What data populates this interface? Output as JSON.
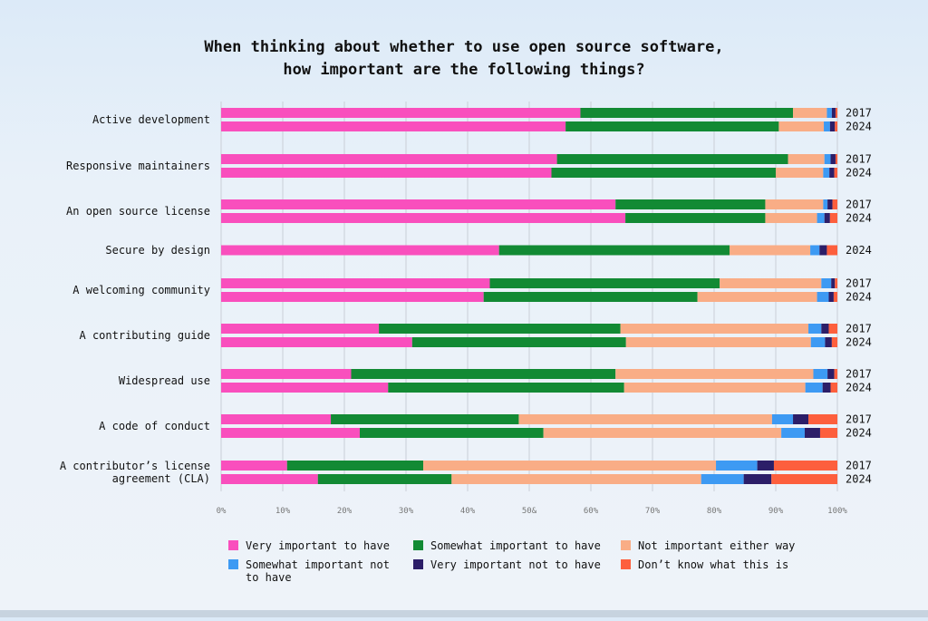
{
  "colors": {
    "very_important": "#f94fbd",
    "somewhat_important": "#128a34",
    "not_important": "#f9ad86",
    "somewhat_not": "#3d9af3",
    "very_not": "#2c1e68",
    "dont_know": "#fd5f3d"
  },
  "chart_data": {
    "type": "bar",
    "orientation": "horizontal",
    "stacked": true,
    "title": "When thinking about whether to use open source software,\nhow important are the following things?",
    "xlim": [
      0,
      100
    ],
    "x_ticks": [
      "0%",
      "10%",
      "20%",
      "30%",
      "40%",
      "50&",
      "60%",
      "70%",
      "80%",
      "90%",
      "100%"
    ],
    "grid": true,
    "legend_position": "bottom",
    "series": [
      {
        "name": "Very important to have",
        "color_key": "very_important"
      },
      {
        "name": "Somewhat important to have",
        "color_key": "somewhat_important"
      },
      {
        "name": "Not important either way",
        "color_key": "not_important"
      },
      {
        "name": "Somewhat important not to have",
        "color_key": "somewhat_not"
      },
      {
        "name": "Very important not to have",
        "color_key": "very_not"
      },
      {
        "name": "Don’t know what this is",
        "color_key": "dont_know"
      }
    ],
    "categories": [
      {
        "label": "Active development",
        "rows": [
          {
            "year": "2017",
            "values": [
              58.3,
              34.5,
              5.5,
              0.8,
              0.6,
              0.3
            ]
          },
          {
            "year": "2024",
            "values": [
              55.9,
              34.6,
              7.3,
              1.0,
              0.8,
              0.4
            ]
          }
        ]
      },
      {
        "label": "Responsive maintainers",
        "rows": [
          {
            "year": "2017",
            "values": [
              54.5,
              37.5,
              5.9,
              1.0,
              0.8,
              0.3
            ]
          },
          {
            "year": "2024",
            "values": [
              53.6,
              36.4,
              7.7,
              1.0,
              0.8,
              0.5
            ]
          }
        ]
      },
      {
        "label": "An open source license",
        "rows": [
          {
            "year": "2017",
            "values": [
              64.0,
              24.3,
              9.4,
              0.7,
              0.8,
              0.8
            ]
          },
          {
            "year": "2024",
            "values": [
              65.6,
              22.7,
              8.4,
              1.2,
              0.9,
              1.2
            ]
          }
        ]
      },
      {
        "label": "Secure by design",
        "rows": [
          {
            "year": "2024",
            "values": [
              45.1,
              37.4,
              13.1,
              1.5,
              1.2,
              1.7
            ]
          }
        ]
      },
      {
        "label": "A welcoming community",
        "rows": [
          {
            "year": "2017",
            "values": [
              43.6,
              37.3,
              16.5,
              1.6,
              0.6,
              0.4
            ]
          },
          {
            "year": "2024",
            "values": [
              42.6,
              34.7,
              19.4,
              1.9,
              0.8,
              0.6
            ]
          }
        ]
      },
      {
        "label": "A contributing guide",
        "rows": [
          {
            "year": "2017",
            "values": [
              25.6,
              39.2,
              30.5,
              2.1,
              1.2,
              1.4
            ]
          },
          {
            "year": "2024",
            "values": [
              31.0,
              34.7,
              30.0,
              2.3,
              1.1,
              0.9
            ]
          }
        ]
      },
      {
        "label": "Widespread use",
        "rows": [
          {
            "year": "2017",
            "values": [
              21.1,
              42.9,
              32.1,
              2.3,
              1.1,
              0.5
            ]
          },
          {
            "year": "2024",
            "values": [
              27.1,
              38.3,
              29.4,
              2.8,
              1.3,
              1.1
            ]
          }
        ]
      },
      {
        "label": "A code of conduct",
        "rows": [
          {
            "year": "2017",
            "values": [
              17.8,
              30.5,
              41.1,
              3.4,
              2.5,
              4.7
            ]
          },
          {
            "year": "2024",
            "values": [
              22.5,
              29.8,
              38.6,
              3.8,
              2.5,
              2.8
            ]
          }
        ]
      },
      {
        "label": "A contributor’s license\nagreement (CLA)",
        "rows": [
          {
            "year": "2017",
            "values": [
              10.7,
              22.1,
              47.5,
              6.7,
              2.7,
              10.3
            ]
          },
          {
            "year": "2024",
            "values": [
              15.7,
              21.7,
              40.5,
              6.9,
              4.5,
              10.7
            ]
          }
        ]
      }
    ]
  }
}
